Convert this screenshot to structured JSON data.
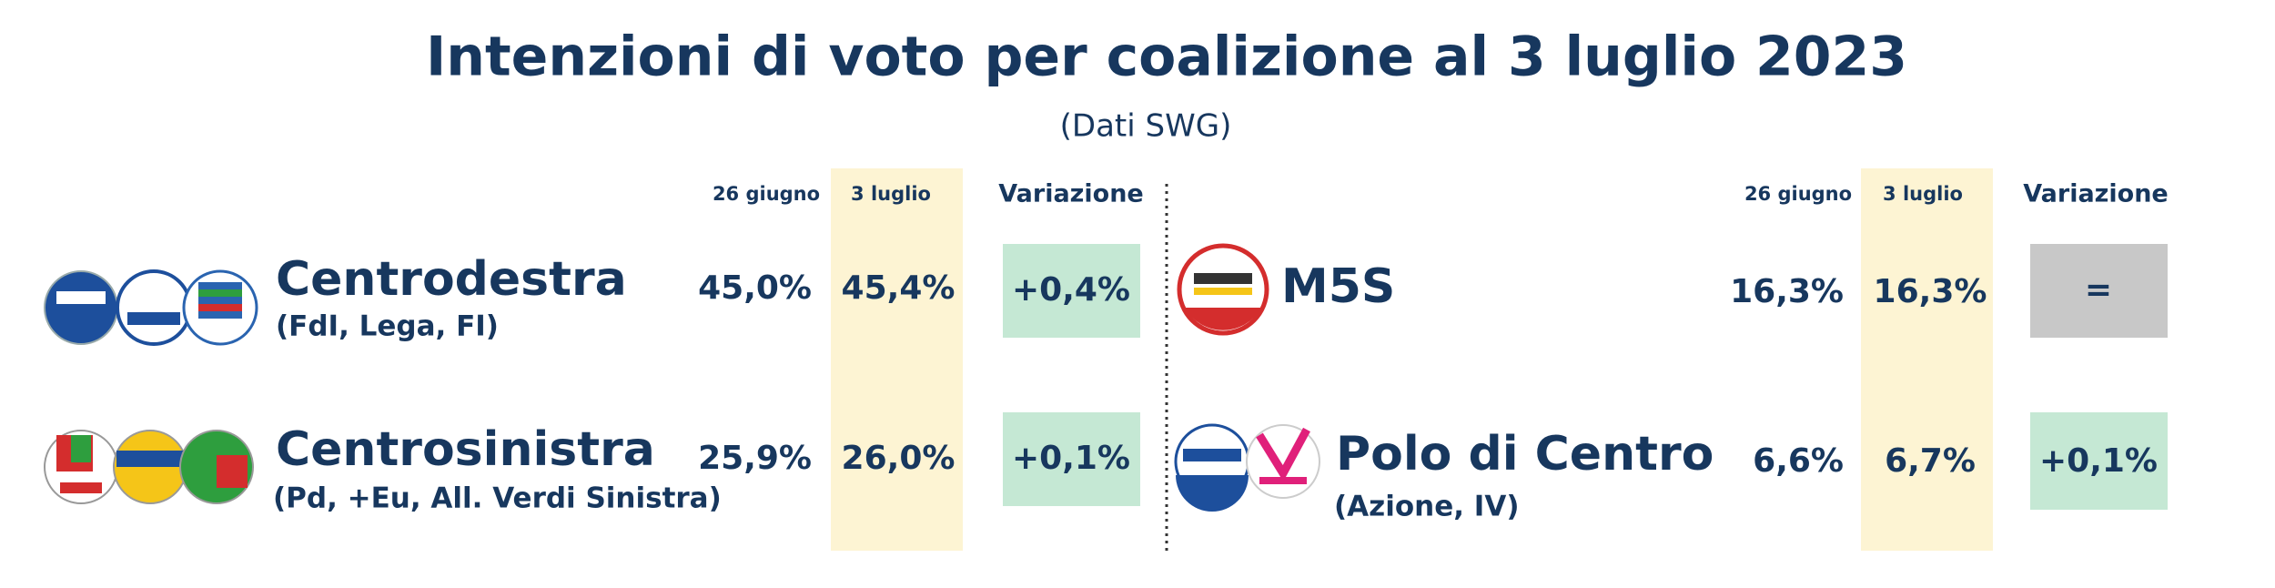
{
  "header": {
    "title": "Intenzioni di voto per coalizione al 3 luglio 2023",
    "subtitle": "(Dati SWG)"
  },
  "panels": [
    {
      "columns": [
        "26 giugno",
        "3 luglio",
        "Variazione"
      ],
      "rows": [
        {
          "name": "Centrodestra",
          "parties": "(FdI, Lega, FI)",
          "june_26": "45,0%",
          "july_3": "45,4%",
          "change": "+0,4%"
        },
        {
          "name": "Centrosinistra",
          "parties": "(Pd, +Eu, All. Verdi Sinistra)",
          "june_26": "25,9%",
          "july_3": "26,0%",
          "change": "+0,1%"
        }
      ]
    },
    {
      "columns": [
        "26 giugno",
        "3 luglio",
        "Variazione"
      ],
      "rows": [
        {
          "name": "M5S",
          "june_26": "16,3%",
          "july_3": "16,3%",
          "change": "="
        },
        {
          "name": "Polo di Centro",
          "parties": "(Azione, IV)",
          "june_26": "6,6%",
          "july_3": "6,7%",
          "change": "+0,1%"
        }
      ]
    }
  ]
}
